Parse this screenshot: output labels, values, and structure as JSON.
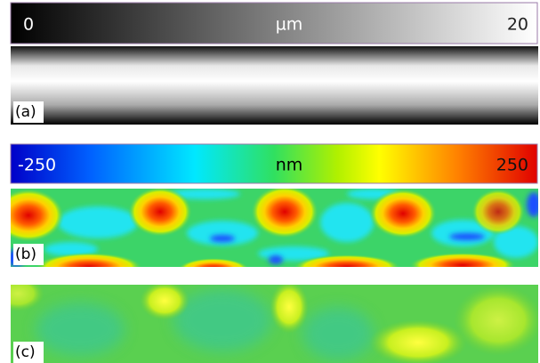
{
  "colorbars": [
    {
      "min": 0,
      "unit": "µm",
      "max": 20
    },
    {
      "min": -250,
      "unit": "nm",
      "max": 250
    }
  ],
  "panels": [
    {
      "label": "(a)"
    },
    {
      "label": "(b)"
    },
    {
      "label": "(c)"
    }
  ]
}
